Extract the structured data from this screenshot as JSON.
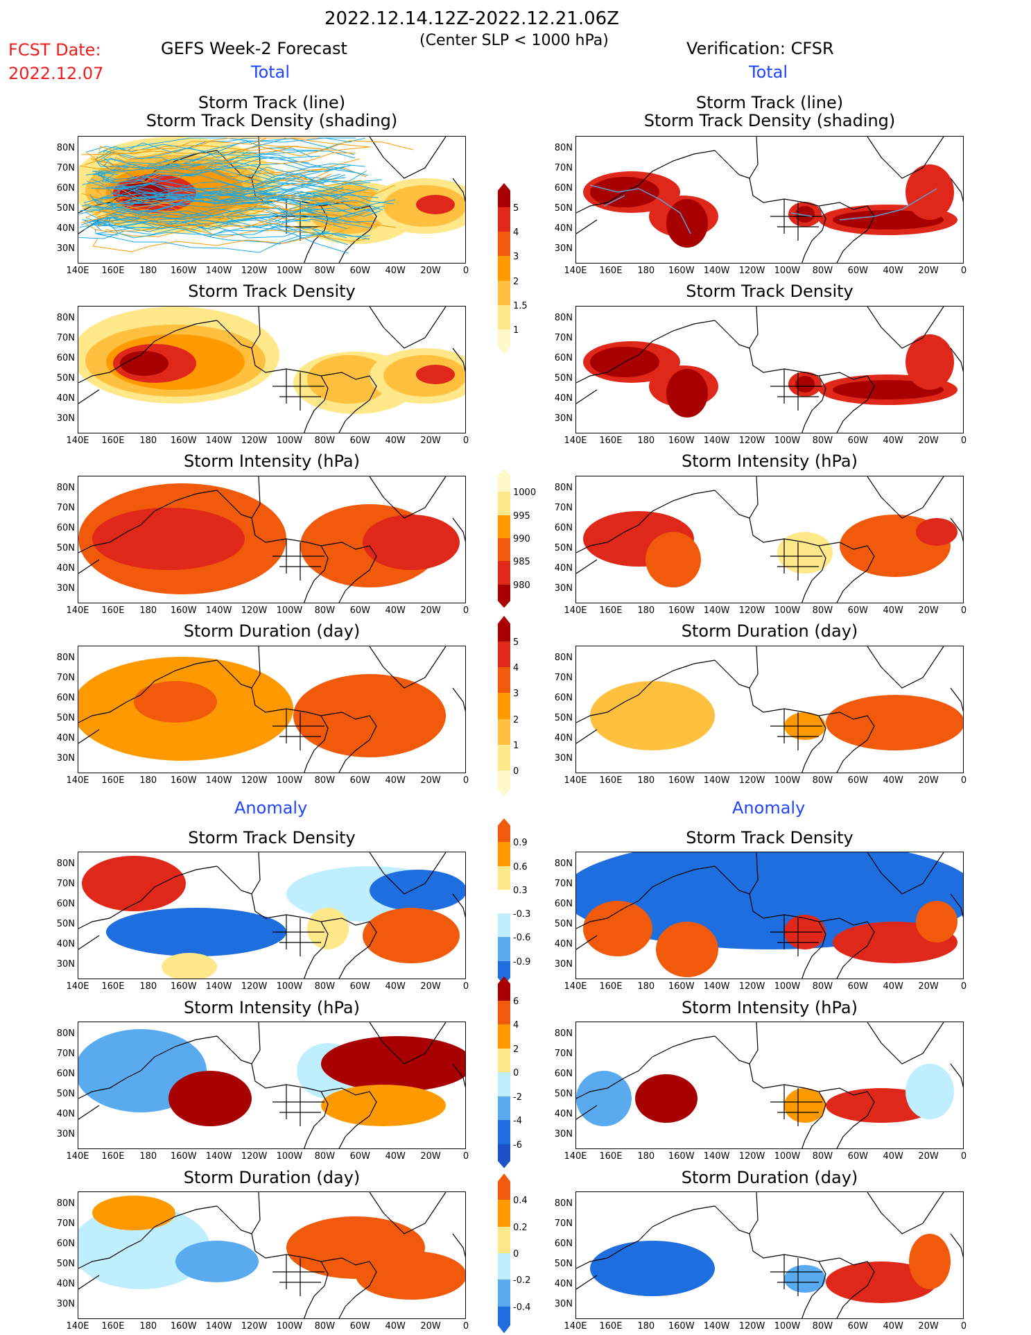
{
  "header": {
    "period": "2022.12.14.12Z-2022.12.21.06Z",
    "criterion": "(Center SLP < 1000 hPa)",
    "fcst_label": "FCST Date:",
    "fcst_date": "2022.12.07",
    "left_title": "GEFS Week-2 Forecast",
    "right_title": "Verification: CFSR",
    "total_left": "Total",
    "total_right": "Total",
    "anomaly_left": "Anomaly",
    "anomaly_right": "Anomaly"
  },
  "panels": {
    "p1_title_l": "Storm Track (line)",
    "p1_title_2": "Storm Track Density (shading)",
    "p2_title": "Storm Track Density",
    "p3_title": "Storm Intensity (hPa)",
    "p4_title": "Storm Duration (day)",
    "p5_title": "Storm Track Density",
    "p6_title": "Storm Intensity (hPa)",
    "p7_title": "Storm Duration (day)"
  },
  "axes": {
    "lat_labels": [
      "80N",
      "70N",
      "60N",
      "50N",
      "40N",
      "30N"
    ],
    "lon_labels": [
      "140E",
      "160E",
      "180",
      "160W",
      "140W",
      "120W",
      "100W",
      "80W",
      "60W",
      "40W",
      "20W",
      "0"
    ]
  },
  "colorbars": {
    "density_total": [
      "5",
      "4",
      "3",
      "2",
      "1.5",
      "1"
    ],
    "intensity_total": [
      "1000",
      "995",
      "990",
      "985",
      "980"
    ],
    "duration_total": [
      "5",
      "4",
      "3",
      "2",
      "1",
      "0"
    ],
    "density_anom": [
      "0.9",
      "0.6",
      "0.3",
      "-0.3",
      "-0.6",
      "-0.9"
    ],
    "intensity_anom": [
      "6",
      "4",
      "2",
      "0",
      "-2",
      "-4",
      "-6"
    ],
    "duration_anom": [
      "0.4",
      "0.2",
      "0",
      "-0.2",
      "-0.4"
    ]
  },
  "colors": {
    "dark_red": "#a80000",
    "red": "#e0281a",
    "orange_red": "#f05a0a",
    "orange": "#ff9900",
    "light_orange": "#ffc040",
    "yellow": "#ffe88a",
    "pale": "#fff8c8",
    "light_blue": "#bfeeff",
    "mid_blue": "#5aaaf0",
    "blue": "#1e6ee0",
    "track_cyan": "#1aa8e8"
  }
}
